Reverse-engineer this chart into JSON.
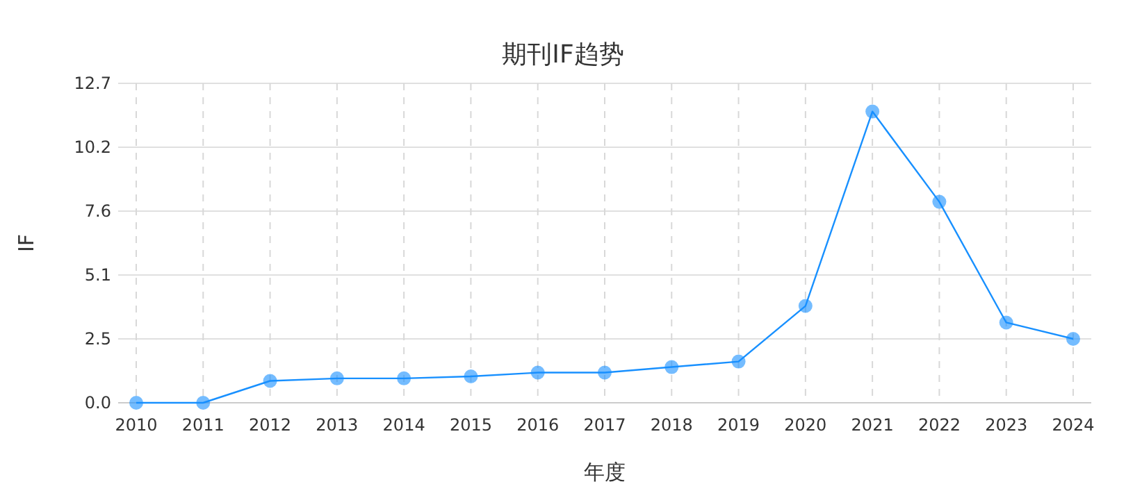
{
  "chart_data": {
    "type": "line",
    "title": "期刊IF趋势",
    "xlabel": "年度",
    "ylabel": "IF",
    "categories": [
      "2010",
      "2011",
      "2012",
      "2013",
      "2014",
      "2015",
      "2016",
      "2017",
      "2018",
      "2019",
      "2020",
      "2021",
      "2022",
      "2023",
      "2024"
    ],
    "series": [
      {
        "color": "#1890ff",
        "values": [
          0,
          0,
          0.87,
          0.97,
          0.97,
          1.05,
          1.2,
          1.2,
          1.42,
          1.64,
          3.85,
          11.58,
          7.99,
          3.19,
          2.54
        ]
      }
    ],
    "ylim": [
      0,
      12.7
    ],
    "yticks": [
      {
        "value": 0,
        "label": "0.0"
      },
      {
        "value": 2.54,
        "label": "2.5"
      },
      {
        "value": 5.08,
        "label": "5.1"
      },
      {
        "value": 7.62,
        "label": "7.6"
      },
      {
        "value": 10.16,
        "label": "10.2"
      },
      {
        "value": 12.7,
        "label": "12.7"
      }
    ],
    "grid": true,
    "marker": "circle"
  }
}
